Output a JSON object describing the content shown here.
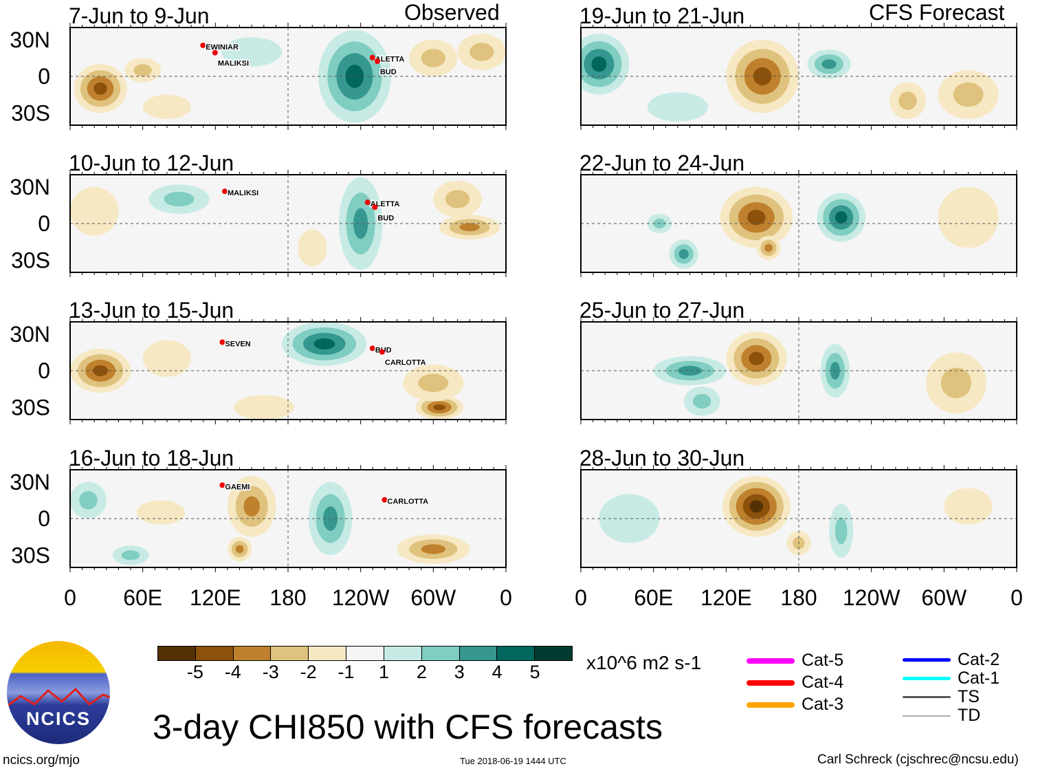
{
  "figure_title": "3-day CHI850 with CFS forecasts",
  "left_header": "Observed",
  "right_header": "CFS Forecast",
  "units": "x10^6 m2 s-1",
  "site": "ncics.org/mjo",
  "timestamp": "Tue 2018-06-19 1444 UTC",
  "author": "Carl Schreck (cjschrec@ncsu.edu)",
  "logo_text": "NCICS",
  "colorbar": {
    "labels": [
      "-5",
      "-4",
      "-3",
      "-2",
      "-1",
      "1",
      "2",
      "3",
      "4",
      "5"
    ],
    "colors": [
      "#543005",
      "#8c510a",
      "#bf812d",
      "#dfc27d",
      "#f6e8c3",
      "#f5f5f5",
      "#c7eae5",
      "#80cdc1",
      "#35978f",
      "#01665e",
      "#003c30"
    ]
  },
  "legend": [
    {
      "label": "Cat-5",
      "color": "#ff00ff",
      "w": 8
    },
    {
      "label": "Cat-4",
      "color": "#ff0000",
      "w": 8
    },
    {
      "label": "Cat-3",
      "color": "#ffa500",
      "w": 8
    },
    {
      "label": "Cat-2",
      "color": "#0000ff",
      "w": 5
    },
    {
      "label": "Cat-1",
      "color": "#00ffff",
      "w": 5
    },
    {
      "label": "TS",
      "color": "#555555",
      "w": 3
    },
    {
      "label": "TD",
      "color": "#aaaaaa",
      "w": 2
    }
  ],
  "chart_data": {
    "type": "heatmap",
    "variable": "CHI850 anomaly",
    "xticks": [
      "0",
      "60E",
      "120E",
      "180",
      "120W",
      "60W",
      "0"
    ],
    "yticks": [
      "30N",
      "0",
      "30S"
    ],
    "lon_range": [
      0,
      360
    ],
    "lat_range": [
      -40,
      40
    ],
    "panels": [
      {
        "title": "7-Jun to 9-Jun",
        "col": 0,
        "row": 0,
        "anoms": [
          [
            25,
            -10,
            22,
            20,
            -4
          ],
          [
            60,
            5,
            15,
            10,
            -2
          ],
          [
            235,
            0,
            30,
            38,
            4
          ],
          [
            150,
            20,
            25,
            12,
            1
          ],
          [
            300,
            15,
            20,
            15,
            -2
          ],
          [
            340,
            20,
            20,
            15,
            -2
          ],
          [
            80,
            -25,
            20,
            10,
            -1
          ]
        ],
        "storms": [
          [
            "EWINIAR",
            112,
            22
          ],
          [
            "MALIKSI",
            122,
            16
          ],
          [
            "ALETTA",
            252,
            12
          ],
          [
            "BUD",
            256,
            9
          ]
        ]
      },
      {
        "title": "10-Jun to 12-Jun",
        "col": 0,
        "row": 1,
        "anoms": [
          [
            90,
            20,
            25,
            12,
            2
          ],
          [
            240,
            0,
            18,
            38,
            3
          ],
          [
            320,
            20,
            20,
            15,
            -2
          ],
          [
            330,
            -3,
            25,
            10,
            -3
          ],
          [
            200,
            -20,
            12,
            15,
            -1
          ],
          [
            20,
            10,
            20,
            20,
            -1
          ]
        ],
        "storms": [
          [
            "MALIKSI",
            130,
            23
          ],
          [
            "ALETTA",
            248,
            14
          ],
          [
            "BUD",
            254,
            10
          ]
        ]
      },
      {
        "title": "13-Jun to 15-Jun",
        "col": 0,
        "row": 2,
        "anoms": [
          [
            25,
            0,
            25,
            18,
            -4
          ],
          [
            210,
            22,
            35,
            18,
            4
          ],
          [
            305,
            -30,
            20,
            10,
            -4
          ],
          [
            300,
            -10,
            25,
            15,
            -2
          ],
          [
            160,
            -30,
            25,
            10,
            -1
          ],
          [
            80,
            10,
            20,
            15,
            -1
          ]
        ],
        "storms": [
          [
            "SEVEN",
            128,
            20
          ],
          [
            "BUD",
            252,
            15
          ],
          [
            "CARLOTTA",
            260,
            12
          ]
        ]
      },
      {
        "title": "16-Jun to 18-Jun",
        "col": 0,
        "row": 3,
        "anoms": [
          [
            150,
            10,
            20,
            25,
            -3
          ],
          [
            140,
            -25,
            10,
            10,
            -3
          ],
          [
            215,
            0,
            18,
            30,
            3
          ],
          [
            300,
            -25,
            30,
            12,
            -3
          ],
          [
            15,
            15,
            15,
            15,
            2
          ],
          [
            50,
            -30,
            15,
            8,
            2
          ],
          [
            75,
            5,
            20,
            10,
            -1
          ]
        ],
        "storms": [
          [
            "GAEMI",
            128,
            24
          ],
          [
            "CARLOTTA",
            262,
            12
          ]
        ]
      },
      {
        "title": "19-Jun to 21-Jun",
        "col": 1,
        "row": 0,
        "anoms": [
          [
            15,
            10,
            25,
            25,
            4
          ],
          [
            150,
            0,
            30,
            30,
            -4
          ],
          [
            205,
            10,
            18,
            12,
            3
          ],
          [
            270,
            -20,
            15,
            15,
            -2
          ],
          [
            320,
            -15,
            25,
            20,
            -2
          ],
          [
            80,
            -25,
            25,
            12,
            1
          ]
        ],
        "storms": []
      },
      {
        "title": "22-Jun to 24-Jun",
        "col": 1,
        "row": 1,
        "anoms": [
          [
            145,
            5,
            30,
            25,
            -4
          ],
          [
            215,
            5,
            20,
            20,
            4
          ],
          [
            85,
            -25,
            12,
            12,
            3
          ],
          [
            320,
            5,
            25,
            25,
            -1
          ],
          [
            65,
            0,
            10,
            8,
            2
          ],
          [
            155,
            -20,
            10,
            10,
            -3
          ]
        ],
        "storms": []
      },
      {
        "title": "25-Jun to 27-Jun",
        "col": 1,
        "row": 2,
        "anoms": [
          [
            145,
            10,
            25,
            22,
            -4
          ],
          [
            210,
            0,
            12,
            22,
            3
          ],
          [
            90,
            0,
            30,
            12,
            3
          ],
          [
            310,
            -10,
            25,
            25,
            -2
          ],
          [
            100,
            -25,
            15,
            12,
            2
          ]
        ],
        "storms": []
      },
      {
        "title": "28-Jun to 30-Jun",
        "col": 1,
        "row": 3,
        "anoms": [
          [
            145,
            10,
            28,
            25,
            -5
          ],
          [
            215,
            -10,
            10,
            22,
            2
          ],
          [
            40,
            0,
            25,
            20,
            1
          ],
          [
            180,
            -20,
            10,
            10,
            -2
          ],
          [
            320,
            10,
            20,
            15,
            -1
          ]
        ],
        "storms": []
      }
    ]
  }
}
